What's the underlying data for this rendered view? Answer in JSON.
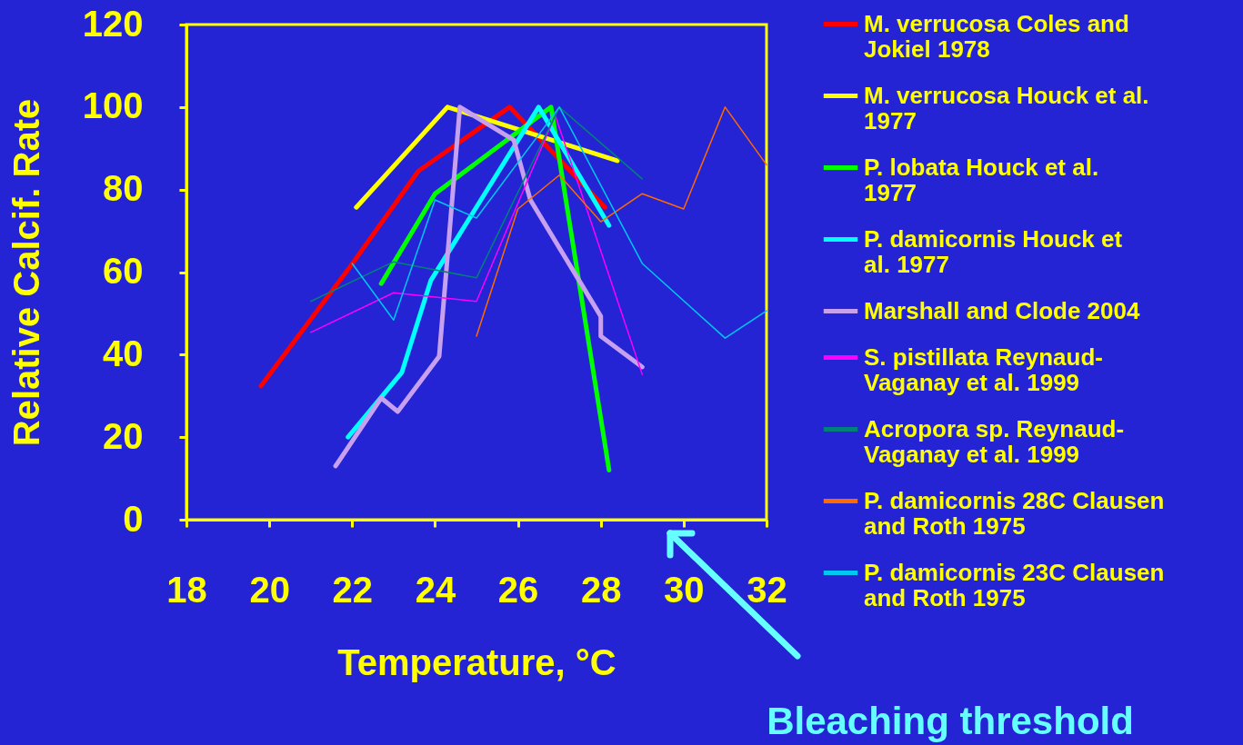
{
  "chart_data": {
    "type": "line",
    "xlabel": "Temperature, °C",
    "ylabel": "Relative Calcif. Rate",
    "xlim": [
      18,
      32
    ],
    "xticks": [
      18,
      20,
      22,
      24,
      26,
      28,
      30,
      32
    ],
    "ylim": [
      0,
      120
    ],
    "yticks": [
      0,
      20,
      40,
      60,
      80,
      100,
      120
    ],
    "grid": false,
    "legend": "right",
    "marker": "none",
    "line_style": "solid",
    "series": [
      {
        "name": "M. verrucosa Coles and Jokiel 1978",
        "color": "#ff0000",
        "x": [
          19.8,
          22.0,
          23.6,
          25.8,
          28.1
        ],
        "values": [
          32.4,
          62,
          84.5,
          100,
          75.7
        ]
      },
      {
        "name": "M. verrucosa Houck et al. 1977",
        "color": "#ffff00",
        "x": [
          22.1,
          24.3,
          28.4
        ],
        "values": [
          75.7,
          100,
          87
        ]
      },
      {
        "name": "P. lobata Houck et al. 1977",
        "color": "#00ff00",
        "x": [
          22.7,
          24.0,
          26.8,
          28.2
        ],
        "values": [
          57.2,
          79,
          100,
          12
        ]
      },
      {
        "name": "P. damicornis Houck et al. 1977",
        "color": "#00ffff",
        "x": [
          21.9,
          23.2,
          23.9,
          26.5,
          28.2
        ],
        "values": [
          20,
          35.7,
          58,
          100,
          71.3
        ]
      },
      {
        "name": "Marshall and Clode 2004",
        "color": "#c8a0f0",
        "x": [
          21.6,
          22.7,
          23.1,
          24.1,
          24.6,
          25.9,
          26.3,
          28.0,
          28.0,
          29.0
        ],
        "values": [
          13,
          29.5,
          26.2,
          39.6,
          100,
          92,
          77.5,
          49.3,
          44.5,
          37
        ]
      },
      {
        "name": "S. pistillata Reynaud-Vaganay et al. 1999",
        "color": "#ff00ff",
        "x": [
          21.0,
          23.0,
          25.0,
          26.9,
          29.0
        ],
        "values": [
          45.4,
          55,
          52.9,
          98,
          35.2
        ]
      },
      {
        "name": "Acropora sp. Reynaud-Vaganay et al. 1999",
        "color": "#00807a",
        "x": [
          21.0,
          23.0,
          25.0,
          27.0,
          29.0
        ],
        "values": [
          52.9,
          62.5,
          58.6,
          100,
          82.6
        ]
      },
      {
        "name": "P. damicornis 28C Clausen and Roth 1975",
        "color": "#ff6a00",
        "x": [
          25.0,
          26.0,
          27.0,
          28.0,
          29.0,
          30.0,
          31.0,
          32.0
        ],
        "values": [
          44.5,
          75.3,
          83.5,
          72.2,
          79,
          75.3,
          100,
          86
        ]
      },
      {
        "name": "P. damicornis 23C Clausen and Roth 1975",
        "color": "#00c8f0",
        "x": [
          22.0,
          23.0,
          24.0,
          25.0,
          27.0,
          29.0,
          31.0,
          32.0
        ],
        "values": [
          62.1,
          48.4,
          77.5,
          73.1,
          100,
          62.1,
          44,
          50.6
        ]
      }
    ],
    "annotations": [
      "Bleaching threshold"
    ]
  }
}
